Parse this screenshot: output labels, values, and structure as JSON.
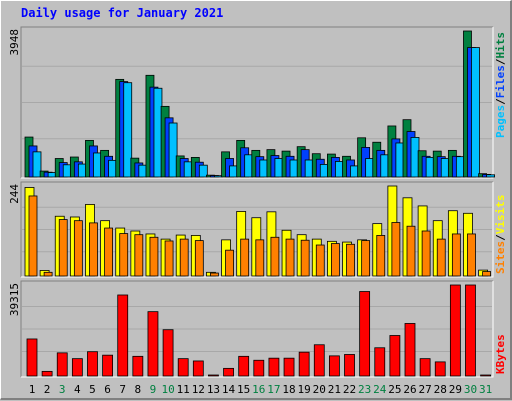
{
  "title": "Daily usage for January 2021",
  "colors": {
    "hits": "#008040",
    "files": "#0040ff",
    "pages": "#00c0ff",
    "visits": "#ffff00",
    "sites": "#ff8000",
    "kbytes": "#ff0000",
    "weekend_label": "#008040",
    "weekday_label": "#000000",
    "panel_bg": "#c0c0c0"
  },
  "chart_data": [
    {
      "type": "bar",
      "categories": [
        "1",
        "2",
        "3",
        "4",
        "5",
        "6",
        "7",
        "8",
        "9",
        "10",
        "11",
        "12",
        "13",
        "14",
        "15",
        "16",
        "17",
        "18",
        "19",
        "20",
        "21",
        "22",
        "23",
        "24",
        "25",
        "26",
        "27",
        "28",
        "29",
        "30",
        "31"
      ],
      "weekend_days": [
        "3",
        "9",
        "10",
        "16",
        "17",
        "23",
        "24",
        "30",
        "31"
      ],
      "ymax_label": "3948",
      "ylim": [
        0,
        3948
      ],
      "legend": [
        "Pages",
        "/",
        "Files",
        "/",
        "Hits"
      ],
      "series": [
        {
          "name": "Hits",
          "color": "#008040",
          "values": [
            1080,
            160,
            500,
            540,
            990,
            720,
            2640,
            510,
            2750,
            1910,
            570,
            530,
            50,
            680,
            990,
            720,
            740,
            700,
            820,
            630,
            620,
            560,
            1060,
            940,
            1380,
            1550,
            710,
            700,
            720,
            3948,
            90
          ]
        },
        {
          "name": "Files",
          "color": "#0040ff",
          "values": [
            840,
            130,
            390,
            410,
            840,
            560,
            2580,
            380,
            2430,
            1600,
            500,
            400,
            40,
            500,
            790,
            550,
            580,
            560,
            740,
            480,
            530,
            460,
            800,
            720,
            1030,
            1230,
            560,
            550,
            560,
            3500,
            70
          ]
        },
        {
          "name": "Pages",
          "color": "#00c0ff",
          "values": [
            680,
            120,
            330,
            350,
            650,
            450,
            2550,
            320,
            2400,
            1460,
            410,
            320,
            35,
            300,
            600,
            460,
            500,
            460,
            460,
            340,
            420,
            300,
            500,
            600,
            920,
            1070,
            530,
            500,
            550,
            3500,
            60
          ]
        }
      ]
    },
    {
      "type": "bar",
      "categories": [
        "1",
        "2",
        "3",
        "4",
        "5",
        "6",
        "7",
        "8",
        "9",
        "10",
        "11",
        "12",
        "13",
        "14",
        "15",
        "16",
        "17",
        "18",
        "19",
        "20",
        "21",
        "22",
        "23",
        "24",
        "25",
        "26",
        "27",
        "28",
        "29",
        "30",
        "31"
      ],
      "ymax_label": "244",
      "ylim": [
        0,
        244
      ],
      "legend": [
        "Sites",
        "/",
        "Visits"
      ],
      "series": [
        {
          "name": "Visits",
          "color": "#ffff00",
          "values": [
            240,
            15,
            162,
            160,
            194,
            150,
            130,
            122,
            114,
            100,
            111,
            110,
            10,
            98,
            175,
            158,
            174,
            124,
            112,
            100,
            94,
            92,
            98,
            142,
            244,
            212,
            190,
            150,
            177,
            170,
            16
          ]
        },
        {
          "name": "Sites",
          "color": "#ff8000",
          "values": [
            217,
            10,
            153,
            150,
            144,
            130,
            115,
            112,
            105,
            95,
            100,
            96,
            8,
            70,
            100,
            98,
            105,
            100,
            97,
            84,
            88,
            86,
            96,
            110,
            145,
            135,
            122,
            100,
            114,
            114,
            12
          ]
        }
      ]
    },
    {
      "type": "bar",
      "categories": [
        "1",
        "2",
        "3",
        "4",
        "5",
        "6",
        "7",
        "8",
        "9",
        "10",
        "11",
        "12",
        "13",
        "14",
        "15",
        "16",
        "17",
        "18",
        "19",
        "20",
        "21",
        "22",
        "23",
        "24",
        "25",
        "26",
        "27",
        "28",
        "29",
        "30",
        "31"
      ],
      "ymax_label": "39315",
      "ylim": [
        0,
        39315
      ],
      "legend": [
        "KBytes"
      ],
      "series": [
        {
          "name": "KBytes",
          "color": "#ff0000",
          "values": [
            16000,
            2000,
            10000,
            7500,
            10500,
            9000,
            35000,
            8500,
            27800,
            20000,
            7500,
            6500,
            0,
            3300,
            8500,
            6800,
            7700,
            7700,
            10300,
            13500,
            8700,
            9300,
            36500,
            12200,
            17500,
            22700,
            7500,
            6100,
            39315,
            39315,
            0
          ]
        }
      ]
    }
  ]
}
